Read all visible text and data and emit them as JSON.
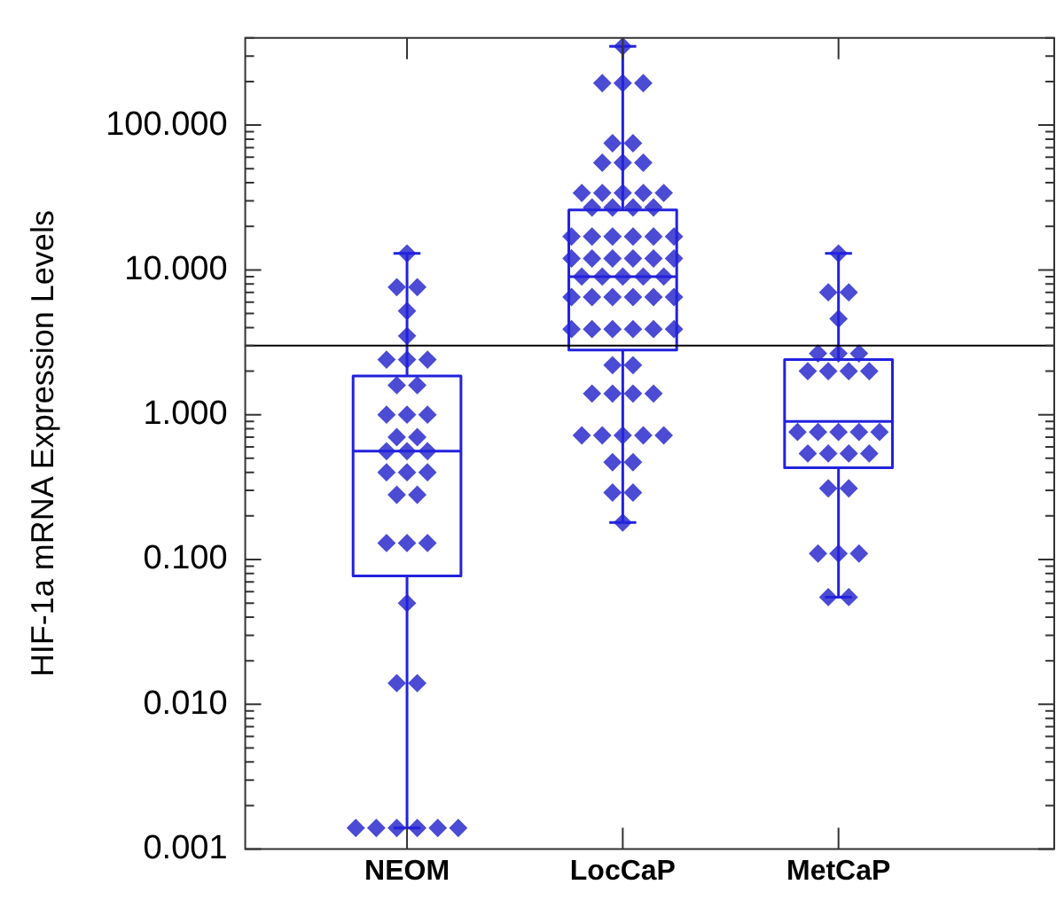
{
  "chart_data": {
    "type": "box",
    "ylabel": "HIF-1a mRNA Expression Levels",
    "categories": [
      "NEOM",
      "LocCaP",
      "MetCaP"
    ],
    "log": true,
    "ylim": [
      0.001,
      400
    ],
    "yticks": [
      {
        "value": 0.001,
        "label": "0.001"
      },
      {
        "value": 0.002,
        "label": null
      },
      {
        "value": 0.003,
        "label": null
      },
      {
        "value": 0.004,
        "label": null
      },
      {
        "value": 0.005,
        "label": null
      },
      {
        "value": 0.006,
        "label": null
      },
      {
        "value": 0.007,
        "label": null
      },
      {
        "value": 0.008,
        "label": null
      },
      {
        "value": 0.009,
        "label": null
      },
      {
        "value": 0.01,
        "label": "0.010"
      },
      {
        "value": 0.02,
        "label": null
      },
      {
        "value": 0.03,
        "label": null
      },
      {
        "value": 0.04,
        "label": null
      },
      {
        "value": 0.05,
        "label": null
      },
      {
        "value": 0.06,
        "label": null
      },
      {
        "value": 0.07,
        "label": null
      },
      {
        "value": 0.08,
        "label": null
      },
      {
        "value": 0.09,
        "label": null
      },
      {
        "value": 0.1,
        "label": "0.100"
      },
      {
        "value": 0.2,
        "label": null
      },
      {
        "value": 0.3,
        "label": null
      },
      {
        "value": 0.4,
        "label": null
      },
      {
        "value": 0.5,
        "label": null
      },
      {
        "value": 0.6,
        "label": null
      },
      {
        "value": 0.7,
        "label": null
      },
      {
        "value": 0.8,
        "label": null
      },
      {
        "value": 0.9,
        "label": null
      },
      {
        "value": 1,
        "label": "1.000"
      },
      {
        "value": 2,
        "label": null
      },
      {
        "value": 3,
        "label": null
      },
      {
        "value": 4,
        "label": null
      },
      {
        "value": 5,
        "label": null
      },
      {
        "value": 6,
        "label": null
      },
      {
        "value": 7,
        "label": null
      },
      {
        "value": 8,
        "label": null
      },
      {
        "value": 9,
        "label": null
      },
      {
        "value": 10,
        "label": "10.000"
      },
      {
        "value": 20,
        "label": null
      },
      {
        "value": 30,
        "label": null
      },
      {
        "value": 40,
        "label": null
      },
      {
        "value": 50,
        "label": null
      },
      {
        "value": 60,
        "label": null
      },
      {
        "value": 70,
        "label": null
      },
      {
        "value": 80,
        "label": null
      },
      {
        "value": 90,
        "label": null
      },
      {
        "value": 100,
        "label": "100.000"
      },
      {
        "value": 200,
        "label": null
      },
      {
        "value": 300,
        "label": null
      },
      {
        "value": 400,
        "label": null
      }
    ],
    "grid": false,
    "legend": false,
    "marker": "diamond",
    "ref_lines": [
      {
        "axis": "y",
        "value": 3,
        "color": "#000000"
      }
    ],
    "series": [
      {
        "color": "#2222dd",
        "boxes": [
          {
            "low": 0.0014,
            "q1": 0.077,
            "median": 0.56,
            "q3": 1.85,
            "high": 13
          },
          {
            "low": 0.18,
            "q1": 2.8,
            "median": 9,
            "q3": 26,
            "high": 350
          },
          {
            "low": 0.055,
            "q1": 0.43,
            "median": 0.9,
            "q3": 2.4,
            "high": 13
          }
        ]
      },
      {
        "type": "scatter",
        "color": "#4b4bd4",
        "x": [
          "NEOM",
          "NEOM",
          "NEOM",
          "NEOM",
          "NEOM",
          "NEOM",
          "NEOM",
          "NEOM",
          "NEOM",
          "NEOM",
          "NEOM",
          "NEOM",
          "NEOM",
          "NEOM",
          "NEOM",
          "NEOM",
          "NEOM",
          "NEOM",
          "NEOM",
          "NEOM",
          "NEOM",
          "NEOM",
          "NEOM",
          "NEOM",
          "NEOM",
          "NEOM",
          "NEOM",
          "NEOM",
          "NEOM",
          "NEOM",
          "NEOM",
          "NEOM",
          "NEOM",
          "NEOM",
          "NEOM",
          "LocCaP",
          "LocCaP",
          "LocCaP",
          "LocCaP",
          "LocCaP",
          "LocCaP",
          "LocCaP",
          "LocCaP",
          "LocCaP",
          "LocCaP",
          "LocCaP",
          "LocCaP",
          "LocCaP",
          "LocCaP",
          "LocCaP",
          "LocCaP",
          "LocCaP",
          "LocCaP",
          "LocCaP",
          "LocCaP",
          "LocCaP",
          "LocCaP",
          "LocCaP",
          "LocCaP",
          "LocCaP",
          "LocCaP",
          "LocCaP",
          "LocCaP",
          "LocCaP",
          "LocCaP",
          "LocCaP",
          "LocCaP",
          "LocCaP",
          "LocCaP",
          "LocCaP",
          "LocCaP",
          "LocCaP",
          "LocCaP",
          "LocCaP",
          "LocCaP",
          "LocCaP",
          "LocCaP",
          "LocCaP",
          "LocCaP",
          "LocCaP",
          "LocCaP",
          "LocCaP",
          "LocCaP",
          "LocCaP",
          "LocCaP",
          "LocCaP",
          "LocCaP",
          "LocCaP",
          "LocCaP",
          "LocCaP",
          "LocCaP",
          "LocCaP",
          "LocCaP",
          "LocCaP",
          "LocCaP",
          "LocCaP",
          "LocCaP",
          "LocCaP",
          "MetCaP",
          "MetCaP",
          "MetCaP",
          "MetCaP",
          "MetCaP",
          "MetCaP",
          "MetCaP",
          "MetCaP",
          "MetCaP",
          "MetCaP",
          "MetCaP",
          "MetCaP",
          "MetCaP",
          "MetCaP",
          "MetCaP",
          "MetCaP",
          "MetCaP",
          "MetCaP",
          "MetCaP",
          "MetCaP",
          "MetCaP",
          "MetCaP",
          "MetCaP",
          "MetCaP",
          "MetCaP",
          "MetCaP",
          "MetCaP"
        ],
        "values": [
          13,
          7.6,
          7.6,
          5.2,
          3.5,
          2.4,
          2.4,
          2.4,
          1.6,
          1.6,
          1,
          1,
          1,
          0.7,
          0.7,
          0.56,
          0.56,
          0.56,
          0.4,
          0.4,
          0.4,
          0.28,
          0.28,
          0.13,
          0.13,
          0.13,
          0.05,
          0.014,
          0.014,
          0.0014,
          0.0014,
          0.0014,
          0.0014,
          0.0014,
          0.0014,
          350,
          195,
          195,
          195,
          75,
          75,
          55,
          55,
          55,
          34,
          34,
          34,
          34,
          34,
          27,
          27,
          27,
          27,
          17,
          17,
          17,
          17,
          17,
          17,
          12,
          12,
          12,
          12,
          12,
          12,
          9,
          9,
          9,
          9,
          9,
          6.5,
          6.5,
          6.5,
          6.5,
          6.5,
          6.5,
          3.9,
          3.9,
          3.9,
          3.9,
          3.9,
          3.9,
          2.2,
          2.2,
          1.4,
          1.4,
          1.4,
          1.4,
          0.72,
          0.72,
          0.72,
          0.72,
          0.72,
          0.47,
          0.47,
          0.29,
          0.29,
          0.18,
          13,
          7,
          7,
          4.6,
          2.65,
          2.65,
          2.65,
          2,
          2,
          2,
          2,
          0.76,
          0.76,
          0.76,
          0.76,
          0.76,
          0.54,
          0.54,
          0.54,
          0.54,
          0.31,
          0.31,
          0.11,
          0.11,
          0.11,
          0.055,
          0.055
        ]
      }
    ]
  }
}
